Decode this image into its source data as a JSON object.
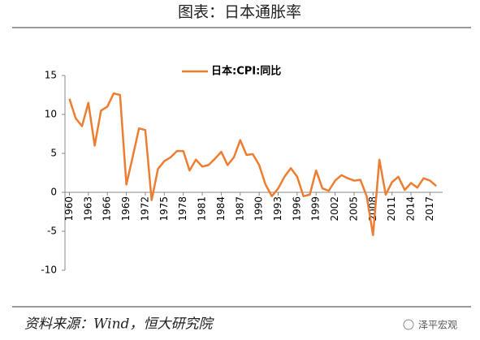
{
  "chart_data": {
    "type": "line",
    "title": "图表：日本通胀率",
    "x": [
      1960,
      1961,
      1962,
      1963,
      1964,
      1965,
      1966,
      1967,
      1968,
      1969,
      1970,
      1971,
      1972,
      1973,
      1974,
      1975,
      1976,
      1977,
      1978,
      1979,
      1980,
      1981,
      1982,
      1983,
      1984,
      1985,
      1986,
      1987,
      1988,
      1989,
      1990,
      1991,
      1992,
      1993,
      1994,
      1995,
      1996,
      1997,
      1998,
      1999,
      2000,
      2001,
      2002,
      2003,
      2004,
      2005,
      2006,
      2007,
      2008,
      2009,
      2010,
      2011,
      2012,
      2013,
      2014,
      2015,
      2016,
      2017,
      2018
    ],
    "series": [
      {
        "name": "日本:CPI:同比",
        "color": "#ED7D31",
        "values": [
          12,
          9.5,
          8.5,
          11.5,
          6,
          10.5,
          11,
          12.7,
          12.5,
          1,
          4.5,
          8.2,
          8,
          -1,
          3,
          4,
          4.5,
          5.3,
          5.3,
          2.8,
          4.2,
          3.3,
          3.5,
          4.3,
          5.2,
          3.5,
          4.5,
          6.7,
          4.8,
          4.9,
          3.5,
          1,
          -0.5,
          0.5,
          2,
          3.1,
          2,
          -0.5,
          -0.3,
          2.8,
          0.5,
          0.2,
          1.5,
          2.2,
          1.8,
          1.5,
          1.6,
          -0.5,
          -5.5,
          4.2,
          -0.3,
          1.3,
          2,
          0.3,
          1.2,
          0.6,
          1.8,
          1.5,
          0.8
        ]
      }
    ],
    "xlim": [
      1959.3,
      2019
    ],
    "xticks": [
      1960,
      1963,
      1966,
      1969,
      1972,
      1975,
      1978,
      1981,
      1984,
      1987,
      1990,
      1993,
      1996,
      1999,
      2002,
      2005,
      2008,
      2011,
      2014,
      2017
    ],
    "ylim": [
      -10,
      15
    ],
    "yticks": [
      15,
      10,
      5,
      0,
      -5,
      -10
    ],
    "source": "资料来源：Wind，恒大研究院",
    "watermark": "泽平宏观"
  }
}
